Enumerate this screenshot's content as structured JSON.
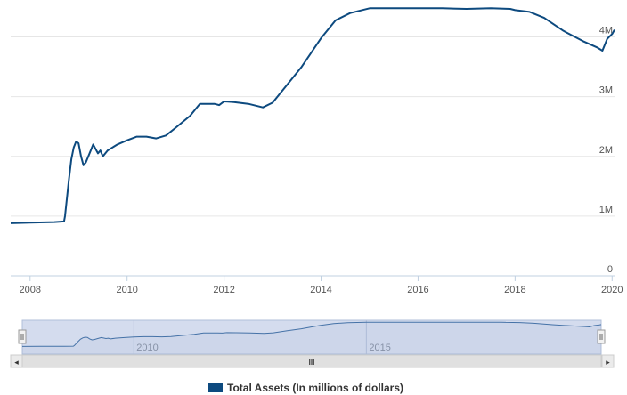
{
  "colors": {
    "series": "#0d4a7f",
    "grid": "#e6e6e6",
    "axis": "#c0d0e0",
    "navigator_mask": "#ccd6eb",
    "navigator_line": "#4572a7",
    "scrollbar": "#e6e6e6"
  },
  "chart_data": {
    "type": "line",
    "title": "",
    "xlabel": "",
    "ylabel": "",
    "xlim": [
      2007.6,
      2020.05
    ],
    "ylim": [
      0,
      4.5
    ],
    "x_ticks": [
      2008,
      2010,
      2012,
      2014,
      2016,
      2018,
      2020
    ],
    "x_tick_labels": [
      "2008",
      "2010",
      "2012",
      "2014",
      "2016",
      "2018",
      "2020"
    ],
    "y_ticks": [
      0,
      1,
      2,
      3,
      4
    ],
    "y_tick_labels": [
      "0",
      "1M",
      "2M",
      "3M",
      "4M"
    ],
    "grid": true,
    "legend": "bottom-center",
    "series": [
      {
        "name": "Total Assets (In millions of dollars)",
        "x": [
          2007.6,
          2008.0,
          2008.5,
          2008.7,
          2008.72,
          2008.8,
          2008.85,
          2008.9,
          2008.95,
          2009.0,
          2009.05,
          2009.1,
          2009.15,
          2009.25,
          2009.3,
          2009.4,
          2009.45,
          2009.5,
          2009.6,
          2009.7,
          2009.8,
          2010.0,
          2010.2,
          2010.4,
          2010.6,
          2010.8,
          2011.0,
          2011.3,
          2011.5,
          2011.8,
          2011.9,
          2012.0,
          2012.2,
          2012.5,
          2012.8,
          2013.0,
          2013.3,
          2013.6,
          2014.0,
          2014.3,
          2014.6,
          2015.0,
          2015.5,
          2016.0,
          2016.5,
          2017.0,
          2017.5,
          2017.9,
          2018.0,
          2018.3,
          2018.6,
          2019.0,
          2019.4,
          2019.7,
          2019.8,
          2019.9,
          2020.0,
          2020.05
        ],
        "values": [
          0.88,
          0.89,
          0.9,
          0.91,
          1.0,
          1.6,
          1.95,
          2.15,
          2.25,
          2.22,
          2.0,
          1.85,
          1.9,
          2.1,
          2.2,
          2.05,
          2.1,
          2.0,
          2.1,
          2.15,
          2.2,
          2.27,
          2.33,
          2.33,
          2.3,
          2.35,
          2.48,
          2.68,
          2.88,
          2.88,
          2.86,
          2.92,
          2.91,
          2.88,
          2.82,
          2.9,
          3.2,
          3.5,
          3.98,
          4.28,
          4.4,
          4.48,
          4.48,
          4.48,
          4.48,
          4.47,
          4.48,
          4.47,
          4.45,
          4.42,
          4.32,
          4.1,
          3.93,
          3.82,
          3.77,
          3.97,
          4.05,
          4.12
        ]
      }
    ],
    "navigator": {
      "tick_labels": [
        "2010",
        "2015"
      ],
      "tick_years": [
        2010,
        2015
      ],
      "xlim": [
        2007.6,
        2020.05
      ]
    }
  },
  "legend": {
    "label": "Total Assets (In millions of dollars)"
  },
  "scrollbar": {
    "grip_glyph": "III",
    "left_arrow": "◂",
    "right_arrow": "▸"
  }
}
